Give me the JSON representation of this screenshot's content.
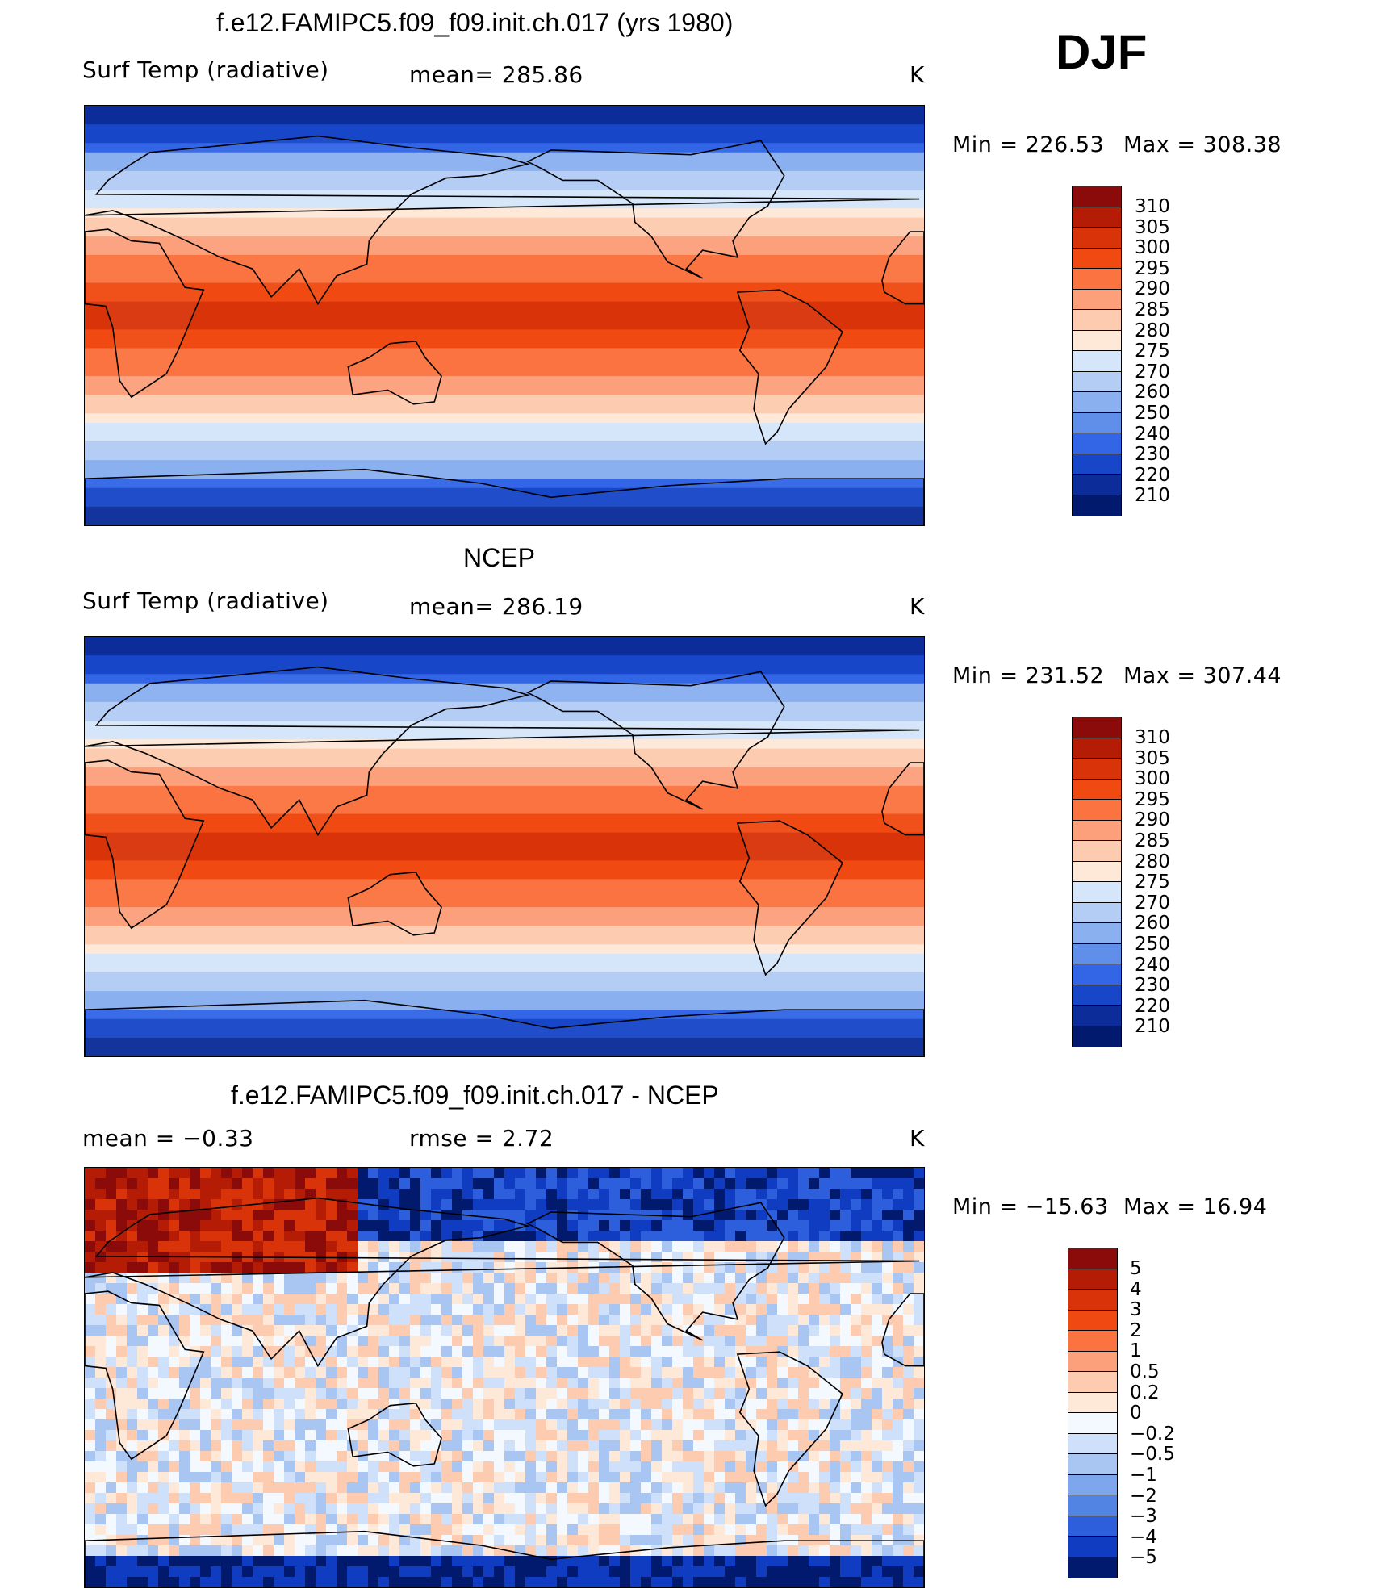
{
  "season": "DJF",
  "chart_data": [
    {
      "type": "heatmap",
      "id": "model",
      "title": "f.e12.FAMIPC5.f09_f09.init.ch.017 (yrs 1980)",
      "variable": "Surf Temp (radiative)",
      "stat_text": "mean=  285.86",
      "units": "K",
      "min_text": "Min  =  226.53",
      "max_text": "Max  =  308.38",
      "min": 226.53,
      "max": 308.38,
      "colorbar_levels": [
        "310",
        "305",
        "300",
        "295",
        "290",
        "285",
        "280",
        "275",
        "270",
        "260",
        "250",
        "240",
        "230",
        "220",
        "210"
      ],
      "colorbar_colors": [
        "#8b0a0a",
        "#b51c06",
        "#d83309",
        "#f04a12",
        "#fb7340",
        "#fca07c",
        "#fdcbaf",
        "#fee8d8",
        "#d6e6fa",
        "#b4cdf5",
        "#8bb0f0",
        "#5f8fe8",
        "#3366e6",
        "#1746c8",
        "#0b2c99",
        "#021a6e"
      ]
    },
    {
      "type": "heatmap",
      "id": "obs",
      "title": "NCEP",
      "variable": "Surf Temp (radiative)",
      "stat_text": "mean=  286.19",
      "units": "K",
      "min_text": "Min  =  231.52",
      "max_text": "Max  =  307.44",
      "min": 231.52,
      "max": 307.44,
      "colorbar_levels": [
        "310",
        "305",
        "300",
        "295",
        "290",
        "285",
        "280",
        "275",
        "270",
        "260",
        "250",
        "240",
        "230",
        "220",
        "210"
      ],
      "colorbar_colors": [
        "#8b0a0a",
        "#b51c06",
        "#d83309",
        "#f04a12",
        "#fb7340",
        "#fca07c",
        "#fdcbaf",
        "#fee8d8",
        "#d6e6fa",
        "#b4cdf5",
        "#8bb0f0",
        "#5f8fe8",
        "#3366e6",
        "#1746c8",
        "#0b2c99",
        "#021a6e"
      ]
    },
    {
      "type": "heatmap",
      "id": "diff",
      "title": "f.e12.FAMIPC5.f09_f09.init.ch.017 - NCEP",
      "mean_text": "mean  =    −0.33",
      "rmse_text": "rmse  =     2.72",
      "units": "K",
      "min_text": "Min  =  −15.63",
      "max_text": "Max  =    16.94",
      "min": -15.63,
      "max": 16.94,
      "mean": -0.33,
      "rmse": 2.72,
      "colorbar_levels": [
        "5",
        "4",
        "3",
        "2",
        "1",
        "0.5",
        "0.2",
        "0",
        "−0.2",
        "−0.5",
        "−1",
        "−2",
        "−3",
        "−4",
        "−5"
      ],
      "colorbar_colors": [
        "#8b0a0a",
        "#b51c06",
        "#d83309",
        "#f04a12",
        "#fb7340",
        "#fca07c",
        "#fdcbaf",
        "#fee8d8",
        "#f4f8ff",
        "#cfe0fa",
        "#a9c6f3",
        "#7ea6ec",
        "#5184e3",
        "#2d5fdc",
        "#0f3cc0",
        "#021a6e"
      ]
    }
  ]
}
